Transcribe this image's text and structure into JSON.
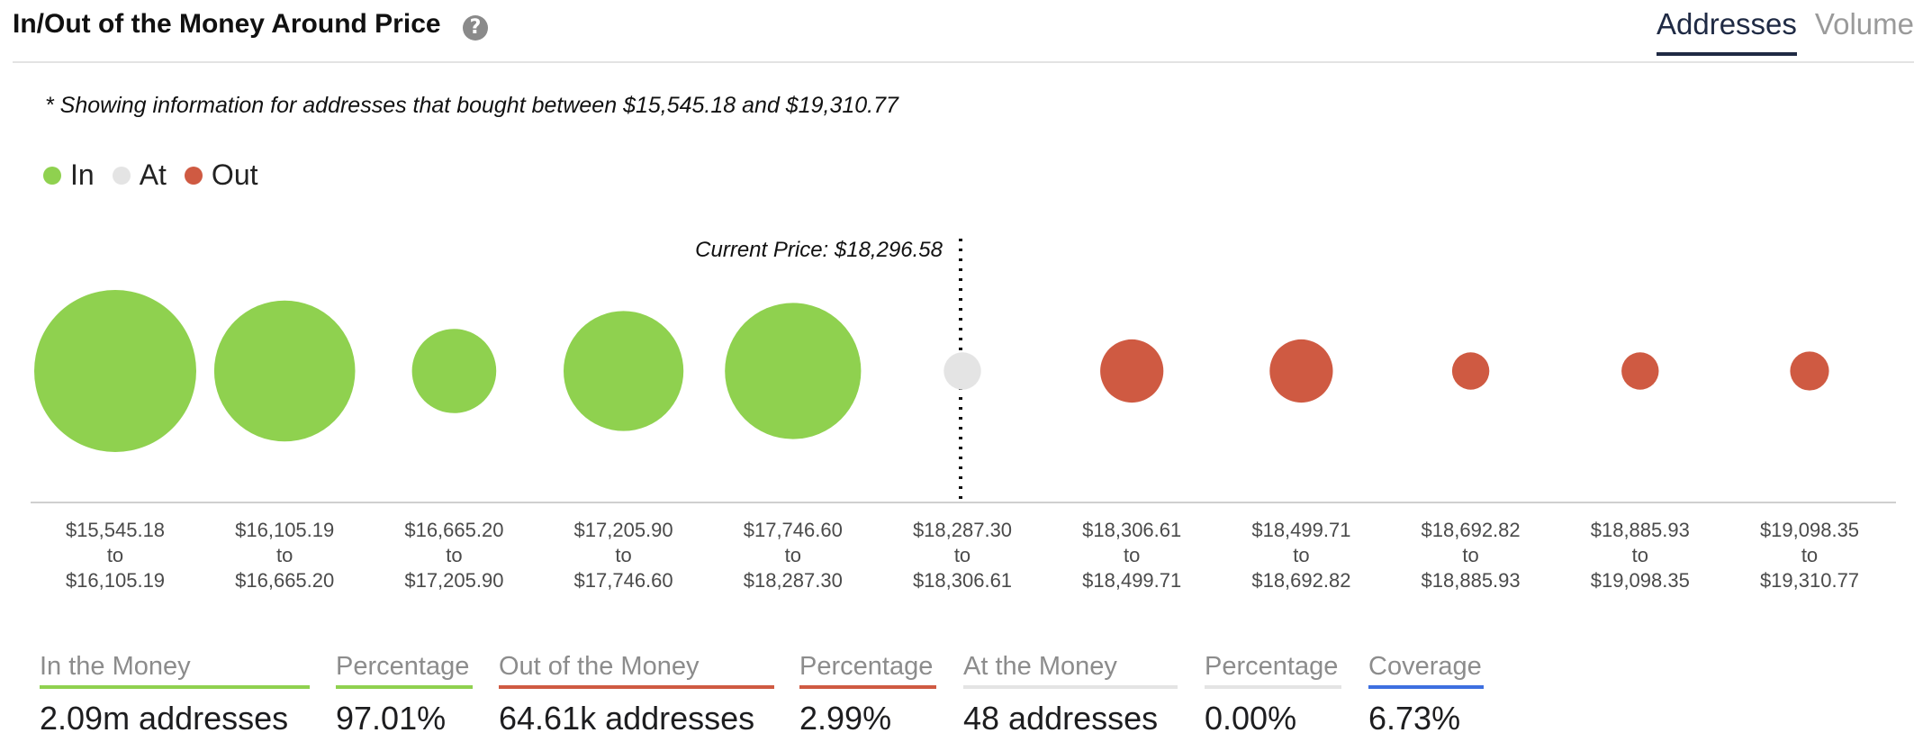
{
  "header": {
    "title": "In/Out of the Money Around Price",
    "help_glyph": "?",
    "tabs": [
      {
        "label": "Addresses",
        "active": true
      },
      {
        "label": "Volume",
        "active": false
      }
    ]
  },
  "note": "* Showing information for addresses that bought between $15,545.18 and $19,310.77",
  "legend": [
    {
      "label": "In",
      "color": "#8fd14f"
    },
    {
      "label": "At",
      "color": "#e4e4e4"
    },
    {
      "label": "Out",
      "color": "#cf5a42"
    }
  ],
  "chart_data": {
    "type": "scatter",
    "current_price_label": "Current Price: $18,296.58",
    "current_price_after_bucket": 5,
    "bucket_size_scale": "relative",
    "buckets": [
      {
        "from": "$15,545.18",
        "to": "$16,105.19",
        "status": "In",
        "size": 1.0
      },
      {
        "from": "$16,105.19",
        "to": "$16,665.20",
        "status": "In",
        "size": 0.87
      },
      {
        "from": "$16,665.20",
        "to": "$17,205.90",
        "status": "In",
        "size": 0.52
      },
      {
        "from": "$17,205.90",
        "to": "$17,746.60",
        "status": "In",
        "size": 0.74
      },
      {
        "from": "$17,746.60",
        "to": "$18,287.30",
        "status": "In",
        "size": 0.84
      },
      {
        "from": "$18,287.30",
        "to": "$18,306.61",
        "status": "At",
        "size": 0.23
      },
      {
        "from": "$18,306.61",
        "to": "$18,499.71",
        "status": "Out",
        "size": 0.39
      },
      {
        "from": "$18,499.71",
        "to": "$18,692.82",
        "status": "Out",
        "size": 0.39
      },
      {
        "from": "$18,692.82",
        "to": "$18,885.93",
        "status": "Out",
        "size": 0.23
      },
      {
        "from": "$18,885.93",
        "to": "$19,098.35",
        "status": "Out",
        "size": 0.23
      },
      {
        "from": "$19,098.35",
        "to": "$19,310.77",
        "status": "Out",
        "size": 0.24
      }
    ],
    "to_word": "to",
    "colors": {
      "In": "#8fd14f",
      "At": "#e4e4e4",
      "Out": "#cf5a42"
    }
  },
  "stats": {
    "in": {
      "label": "In the Money",
      "value": "2.09m addresses"
    },
    "in_pct": {
      "label": "Percentage",
      "value": "97.01%"
    },
    "out": {
      "label": "Out of the Money",
      "value": "64.61k addresses"
    },
    "out_pct": {
      "label": "Percentage",
      "value": "2.99%"
    },
    "at": {
      "label": "At the Money",
      "value": "48 addresses"
    },
    "at_pct": {
      "label": "Percentage",
      "value": "0.00%"
    },
    "coverage": {
      "label": "Coverage",
      "value": "6.73%"
    }
  }
}
